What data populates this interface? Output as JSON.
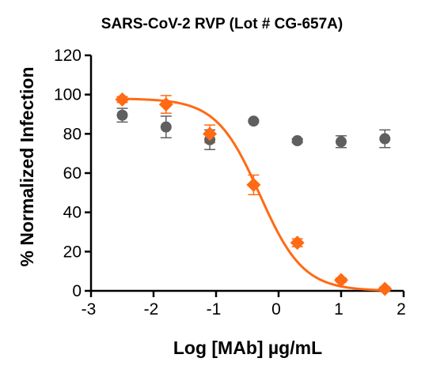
{
  "chart_data": {
    "type": "scatter",
    "title": "SARS-CoV-2 RVP (Lot # CG-657A)",
    "xlabel": "Log [MAb] µg/mL",
    "ylabel": "% Normalized Infection",
    "xlim": [
      -3,
      2
    ],
    "ylim": [
      0,
      120
    ],
    "xticks": [
      -3,
      -2,
      -1,
      0,
      1,
      2
    ],
    "yticks": [
      0,
      20,
      40,
      60,
      80,
      100,
      120
    ],
    "grid": false,
    "legend": "none",
    "series": [
      {
        "marker": "diamond",
        "color": "#ff6a13",
        "x": [
          -2.5,
          -1.8,
          -1.1,
          -0.4,
          0.3,
          1.0,
          1.7
        ],
        "y": [
          97.5,
          95,
          80,
          54,
          24.5,
          5.5,
          1
        ],
        "err": [
          1.5,
          4.5,
          4.5,
          5,
          2,
          1,
          1
        ],
        "fit": {
          "model": "4PL",
          "top": 98,
          "bottom": 0,
          "log_ic50": -0.3,
          "hill": 1.25,
          "x_range": [
            -2.5,
            1.7
          ]
        }
      },
      {
        "marker": "circle",
        "color": "#5f5f5f",
        "x": [
          -2.5,
          -1.8,
          -1.1,
          -0.4,
          0.3,
          1.0,
          1.7
        ],
        "y": [
          89.5,
          83.5,
          77,
          86.5,
          76.5,
          76,
          77.5
        ],
        "err": [
          3.5,
          5.5,
          5,
          0.5,
          1,
          3,
          4.5
        ]
      }
    ]
  }
}
